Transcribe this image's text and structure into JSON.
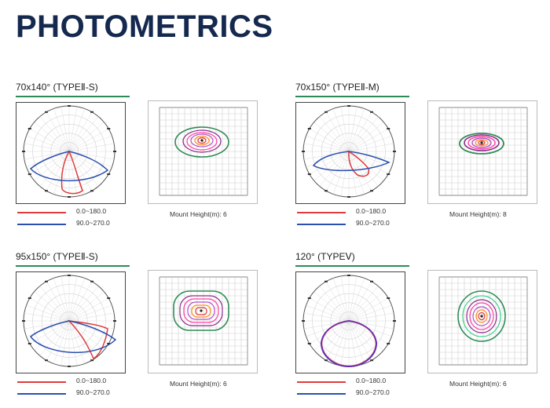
{
  "page": {
    "title": "PHOTOMETRICS"
  },
  "colors": {
    "red_curve": "#e03a3a",
    "blue_curve": "#2a4fb0",
    "purple_curve": "#5a2bb8",
    "accent_line": "#2e8b57",
    "title": "#15294f"
  },
  "legend": {
    "red": "0.0~180.0",
    "blue": "90.0~270.0"
  },
  "blocks": [
    {
      "id": "b1",
      "title": "70x140°  (TYPEⅡ-S)",
      "mount": "Mount Height(m): 6",
      "curve_style": "type2s"
    },
    {
      "id": "b2",
      "title": "70x150°  (TYPEⅡ-M)",
      "mount": "Mount Height(m): 8",
      "curve_style": "type2m"
    },
    {
      "id": "b3",
      "title": "95x150°  (TYPEⅡ-S)",
      "mount": "Mount Height(m): 6",
      "curve_style": "type2s_wide"
    },
    {
      "id": "b4",
      "title": "120°  (TYPEⅤ)",
      "mount": "Mount Height(m): 6",
      "curve_style": "type5"
    }
  ]
}
